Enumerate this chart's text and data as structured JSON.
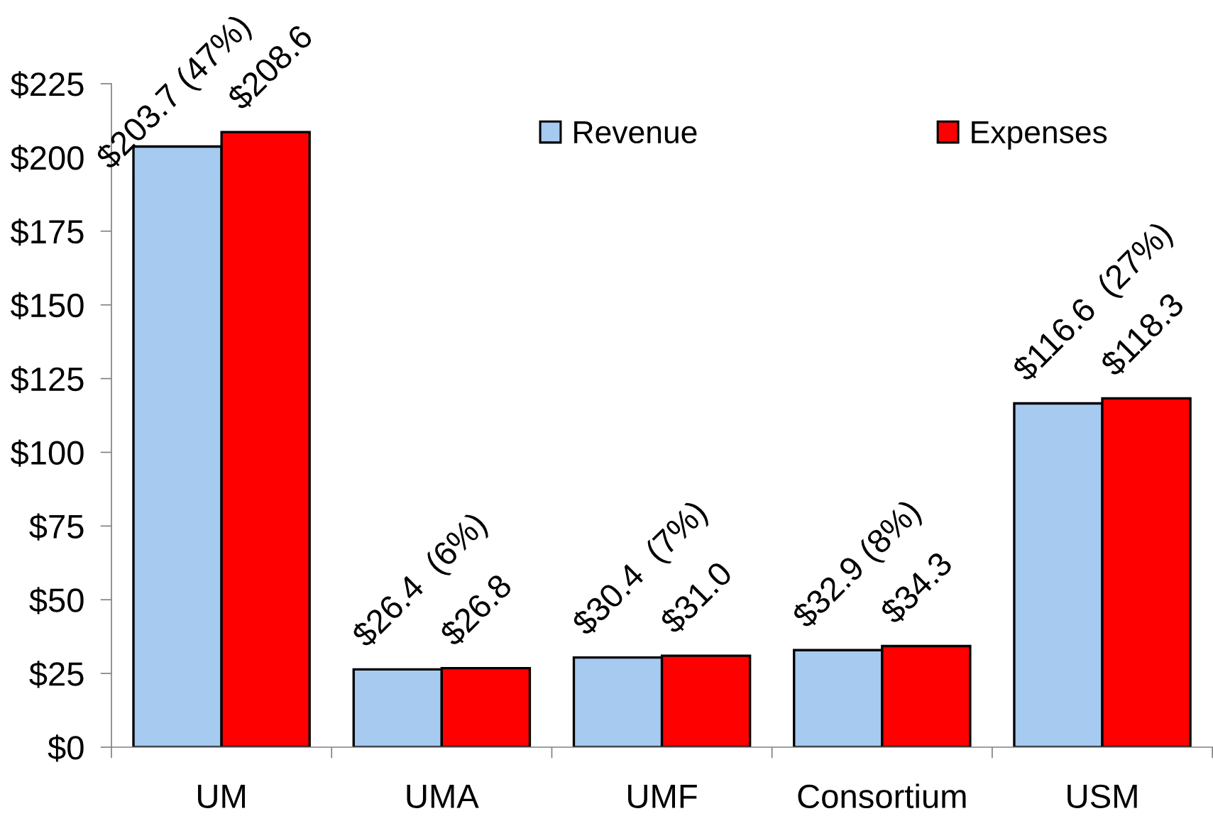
{
  "chart_data": {
    "type": "bar",
    "categories": [
      "UM",
      "UMA",
      "UMF",
      "Consortium",
      "USM"
    ],
    "series": [
      {
        "name": "Revenue",
        "color": "#a6caf0",
        "values": [
          203.7,
          26.4,
          30.4,
          32.9,
          116.6
        ],
        "value_labels": [
          "$203.7 (47%)",
          "$26.4  (6%)",
          "$30.4  (7%)",
          "$32.9 (8%)",
          "$116.6  (27%)"
        ]
      },
      {
        "name": "Expenses",
        "color": "#ff0000",
        "values": [
          208.6,
          26.8,
          31.0,
          34.3,
          118.3
        ],
        "value_labels": [
          "$208.6",
          "$26.8",
          "$31.0",
          "$34.3",
          "$118.3"
        ]
      }
    ],
    "ylim": [
      0,
      225
    ],
    "yticks": [
      {
        "value": 0,
        "label": "$0"
      },
      {
        "value": 25,
        "label": "$25"
      },
      {
        "value": 50,
        "label": "$50"
      },
      {
        "value": 75,
        "label": "$75"
      },
      {
        "value": 100,
        "label": "$100"
      },
      {
        "value": 125,
        "label": "$125"
      },
      {
        "value": 150,
        "label": "$150"
      },
      {
        "value": 175,
        "label": "$175"
      },
      {
        "value": 200,
        "label": "$200"
      },
      {
        "value": 225,
        "label": "$225"
      }
    ],
    "legend": "top right"
  }
}
